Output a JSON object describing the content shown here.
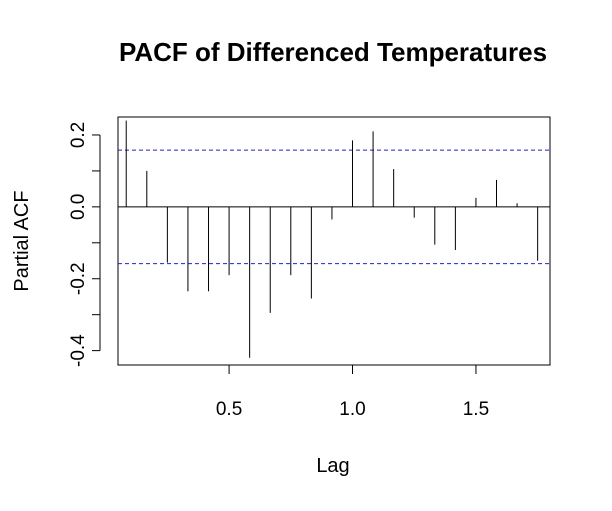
{
  "chart_data": {
    "type": "bar",
    "title": "PACF of Differenced Temperatures",
    "xlabel": "Lag",
    "ylabel": "Partial ACF",
    "xlim": [
      0.05,
      1.8
    ],
    "ylim": [
      -0.44,
      0.25
    ],
    "x_ticks": [
      0.5,
      1.0,
      1.5
    ],
    "x_tick_labels": [
      "0.5",
      "1.0",
      "1.5"
    ],
    "y_ticks": [
      -0.4,
      -0.2,
      0.0,
      0.2
    ],
    "y_tick_labels": [
      "-0.4",
      "-0.2",
      "0.0",
      "0.2"
    ],
    "confidence_bound": 0.158,
    "grid": false,
    "lags": [
      0.0833,
      0.1667,
      0.25,
      0.3333,
      0.4167,
      0.5,
      0.5833,
      0.6667,
      0.75,
      0.8333,
      0.9167,
      1.0,
      1.0833,
      1.1667,
      1.25,
      1.3333,
      1.4167,
      1.5,
      1.5833,
      1.6667,
      1.75
    ],
    "values": [
      0.24,
      0.1,
      -0.155,
      -0.235,
      -0.235,
      -0.19,
      -0.42,
      -0.295,
      -0.19,
      -0.255,
      -0.035,
      0.185,
      0.21,
      0.105,
      -0.03,
      -0.105,
      -0.12,
      0.025,
      0.075,
      0.01,
      -0.15
    ]
  }
}
